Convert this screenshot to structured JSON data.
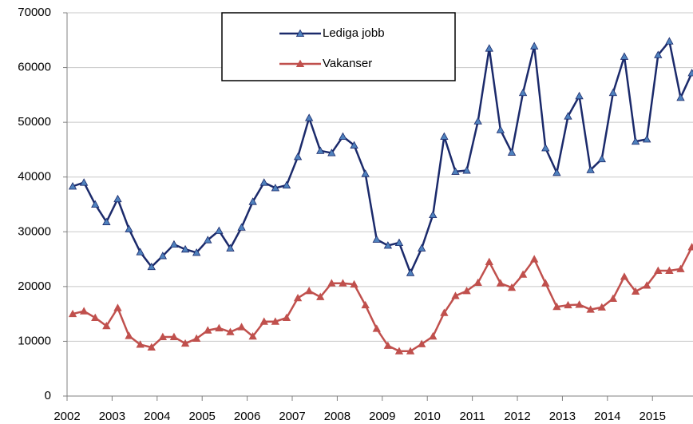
{
  "chart_data": {
    "type": "line",
    "x": [
      2002.125,
      2002.375,
      2002.625,
      2002.875,
      2003.125,
      2003.375,
      2003.625,
      2003.875,
      2004.125,
      2004.375,
      2004.625,
      2004.875,
      2005.125,
      2005.375,
      2005.625,
      2005.875,
      2006.125,
      2006.375,
      2006.625,
      2006.875,
      2007.125,
      2007.375,
      2007.625,
      2007.875,
      2008.125,
      2008.375,
      2008.625,
      2008.875,
      2009.125,
      2009.375,
      2009.625,
      2009.875,
      2010.125,
      2010.375,
      2010.625,
      2010.875,
      2011.125,
      2011.375,
      2011.625,
      2011.875,
      2012.125,
      2012.375,
      2012.625,
      2012.875,
      2013.125,
      2013.375,
      2013.625,
      2013.875,
      2014.125,
      2014.375,
      2014.625,
      2014.875,
      2015.125,
      2015.375,
      2015.625,
      2015.875
    ],
    "series": [
      {
        "name": "Lediga jobb",
        "color": "#1b2a6b",
        "marker_color": "#4f81bd",
        "values": [
          38300,
          39000,
          35000,
          31800,
          36000,
          30500,
          26300,
          23600,
          25600,
          27700,
          26800,
          26200,
          28500,
          30200,
          27000,
          30800,
          35500,
          39000,
          38000,
          38500,
          43700,
          50800,
          44800,
          44400,
          47400,
          45800,
          40600,
          28600,
          27500,
          28000,
          22500,
          27000,
          33100,
          47400,
          41000,
          41200,
          50200,
          63500,
          48600,
          44500,
          55400,
          63900,
          45300,
          40800,
          51100,
          54800,
          41300,
          43300,
          55400,
          62000,
          46500,
          46900,
          62300,
          64800,
          54500,
          59000
        ]
      },
      {
        "name": "Vakanser",
        "color": "#c0504d",
        "marker_color": "#c0504d",
        "values": [
          15000,
          15500,
          14300,
          12800,
          16100,
          11000,
          9400,
          8900,
          10800,
          10800,
          9600,
          10500,
          12000,
          12400,
          11700,
          12600,
          10900,
          13600,
          13600,
          14300,
          17900,
          19200,
          18100,
          20600,
          20600,
          20400,
          16600,
          12300,
          9200,
          8200,
          8200,
          9500,
          10900,
          15200,
          18300,
          19200,
          20700,
          24500,
          20600,
          19800,
          22200,
          25000,
          20600,
          16300,
          16600,
          16700,
          15800,
          16200,
          17800,
          21800,
          19100,
          20200,
          22900,
          22900,
          23200,
          27200
        ]
      }
    ],
    "xlim": [
      2002,
      2015.9
    ],
    "xticks": [
      2002,
      2003,
      2004,
      2005,
      2006,
      2007,
      2008,
      2009,
      2010,
      2011,
      2012,
      2013,
      2014,
      2015
    ],
    "ylim": [
      0,
      70000
    ],
    "yticks": [
      0,
      10000,
      20000,
      30000,
      40000,
      50000,
      60000,
      70000
    ],
    "grid": true
  }
}
